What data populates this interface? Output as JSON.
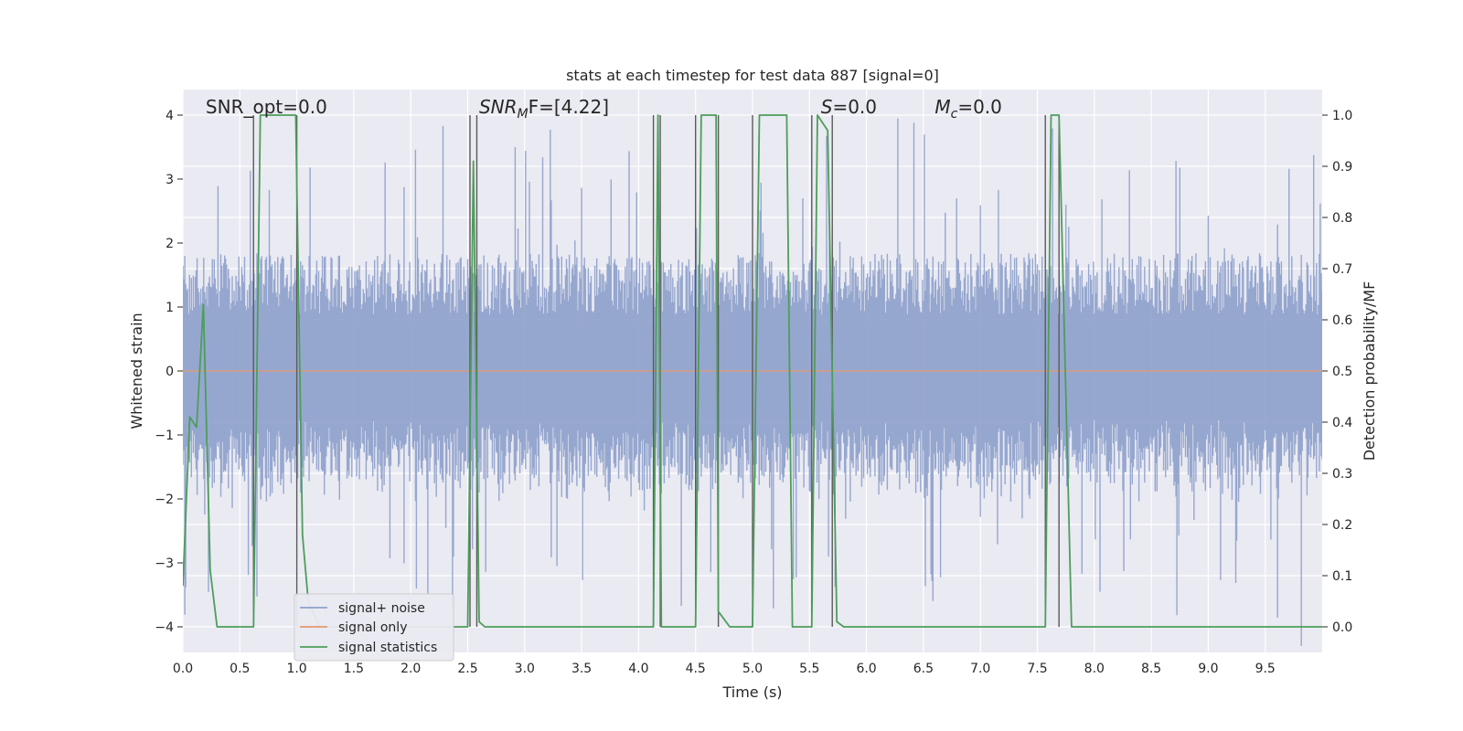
{
  "chart_data": {
    "type": "line",
    "title": "stats at each timestep for test data 887 [signal=0]",
    "xlabel": "Time (s)",
    "ylabel": "Whitened strain",
    "y2label": "Detection probability/MF",
    "xlim": [
      0,
      10
    ],
    "ylim": [
      -4.4,
      4.4
    ],
    "y2lim": [
      -0.05,
      1.05
    ],
    "xticks": [
      "0.0",
      "0.5",
      "1.0",
      "1.5",
      "2.0",
      "2.5",
      "3.0",
      "3.5",
      "4.0",
      "4.5",
      "5.0",
      "5.5",
      "6.0",
      "6.5",
      "7.0",
      "7.5",
      "8.0",
      "8.5",
      "9.0",
      "9.5"
    ],
    "yticks": [
      "−4",
      "−3",
      "−2",
      "−1",
      "0",
      "1",
      "2",
      "3",
      "4"
    ],
    "y2ticks": [
      "0.0",
      "0.1",
      "0.2",
      "0.3",
      "0.4",
      "0.5",
      "0.6",
      "0.7",
      "0.8",
      "0.9",
      "1.0"
    ],
    "grid": true,
    "legend_position": "lower-left",
    "colors": {
      "noise": "#8da0cb",
      "signal": "#e5996b",
      "stats": "#4c9e5a",
      "vline": "#5a5a5a",
      "background": "#eaeaf2"
    },
    "annotations": [
      {
        "prefix": "SNR_opt=0.0",
        "sub": "",
        "suffix": "",
        "x": 0.2
      },
      {
        "prefix": "SNR",
        "sub": "M",
        "suffix": "F=[4.22]",
        "x": 2.6
      },
      {
        "prefix": "S",
        "sub": "",
        "suffix": "=0.0",
        "x": 5.6
      },
      {
        "prefix": "M",
        "sub": "c",
        "suffix": "=0.0",
        "x": 6.6
      }
    ],
    "series": [
      {
        "name": "signal+ noise",
        "kind": "noise",
        "amplitude_typical": 1.6,
        "amplitude_peak": 4.0
      },
      {
        "name": "signal only",
        "kind": "flat",
        "value": 0
      },
      {
        "name": "signal statistics",
        "kind": "line",
        "x": [
          0.0,
          0.06,
          0.12,
          0.18,
          0.24,
          0.3,
          0.62,
          0.68,
          0.99,
          1.05,
          1.1,
          1.2,
          2.5,
          2.55,
          2.6,
          2.65,
          4.13,
          4.17,
          4.2,
          4.25,
          4.5,
          4.55,
          4.68,
          4.7,
          4.8,
          5.0,
          5.06,
          5.3,
          5.35,
          5.52,
          5.57,
          5.66,
          5.74,
          5.8,
          7.57,
          7.62,
          7.69,
          7.8,
          10.0
        ],
        "y": [
          0.08,
          0.41,
          0.39,
          0.63,
          0.11,
          0.0,
          0.0,
          1.0,
          1.0,
          0.18,
          0.05,
          0.0,
          0.0,
          0.91,
          0.01,
          0.0,
          0.0,
          1.0,
          0.0,
          0.0,
          0.0,
          1.0,
          1.0,
          0.03,
          0.0,
          0.0,
          1.0,
          1.0,
          0.0,
          0.0,
          1.0,
          0.97,
          0.01,
          0.0,
          0.0,
          1.0,
          1.0,
          0.0,
          0.0
        ]
      }
    ],
    "vlines": [
      0.62,
      1.0,
      2.52,
      2.58,
      4.13,
      4.19,
      4.5,
      4.7,
      5.0,
      5.52,
      5.7,
      7.57,
      7.69
    ]
  }
}
